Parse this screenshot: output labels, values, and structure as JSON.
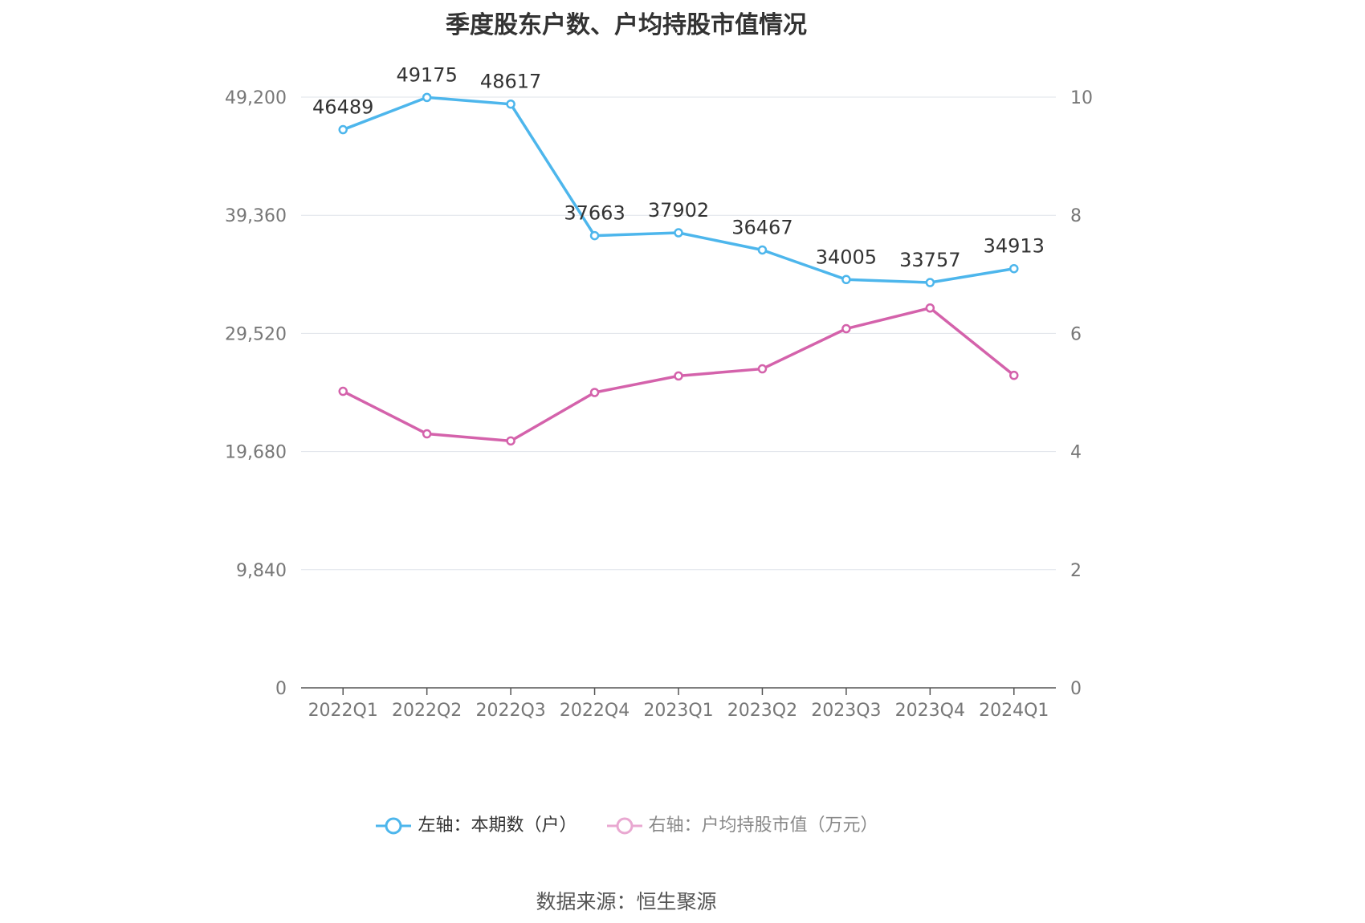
{
  "chart_data": {
    "type": "line",
    "title": "季度股东户数、户均持股市值情况",
    "categories": [
      "2022Q1",
      "2022Q2",
      "2022Q3",
      "2022Q4",
      "2023Q1",
      "2023Q2",
      "2023Q3",
      "2023Q4",
      "2024Q1"
    ],
    "series": [
      {
        "name": "左轴：本期数（户）",
        "axis": "left",
        "color": "#4db6ec",
        "values": [
          46489,
          49175,
          48617,
          37663,
          37902,
          36467,
          34005,
          33757,
          34913
        ],
        "data_labels": [
          "46489",
          "49175",
          "48617",
          "37663",
          "37902",
          "36467",
          "34005",
          "33757",
          "34913"
        ]
      },
      {
        "name": "右轴：户均持股市值（万元）",
        "axis": "right",
        "color": "#d462ab",
        "values": [
          5.02,
          4.3,
          4.18,
          5.0,
          5.28,
          5.4,
          6.08,
          6.43,
          5.29
        ]
      }
    ],
    "left_axis": {
      "min": 0,
      "max": 49200,
      "ticks": [
        "0",
        "9,840",
        "19,680",
        "29,520",
        "39,360",
        "49,200"
      ]
    },
    "right_axis": {
      "min": 0,
      "max": 10,
      "ticks": [
        "0",
        "2",
        "4",
        "6",
        "8",
        "10"
      ]
    },
    "grid": true,
    "legend_position": "bottom"
  },
  "source": "数据来源：恒生聚源"
}
